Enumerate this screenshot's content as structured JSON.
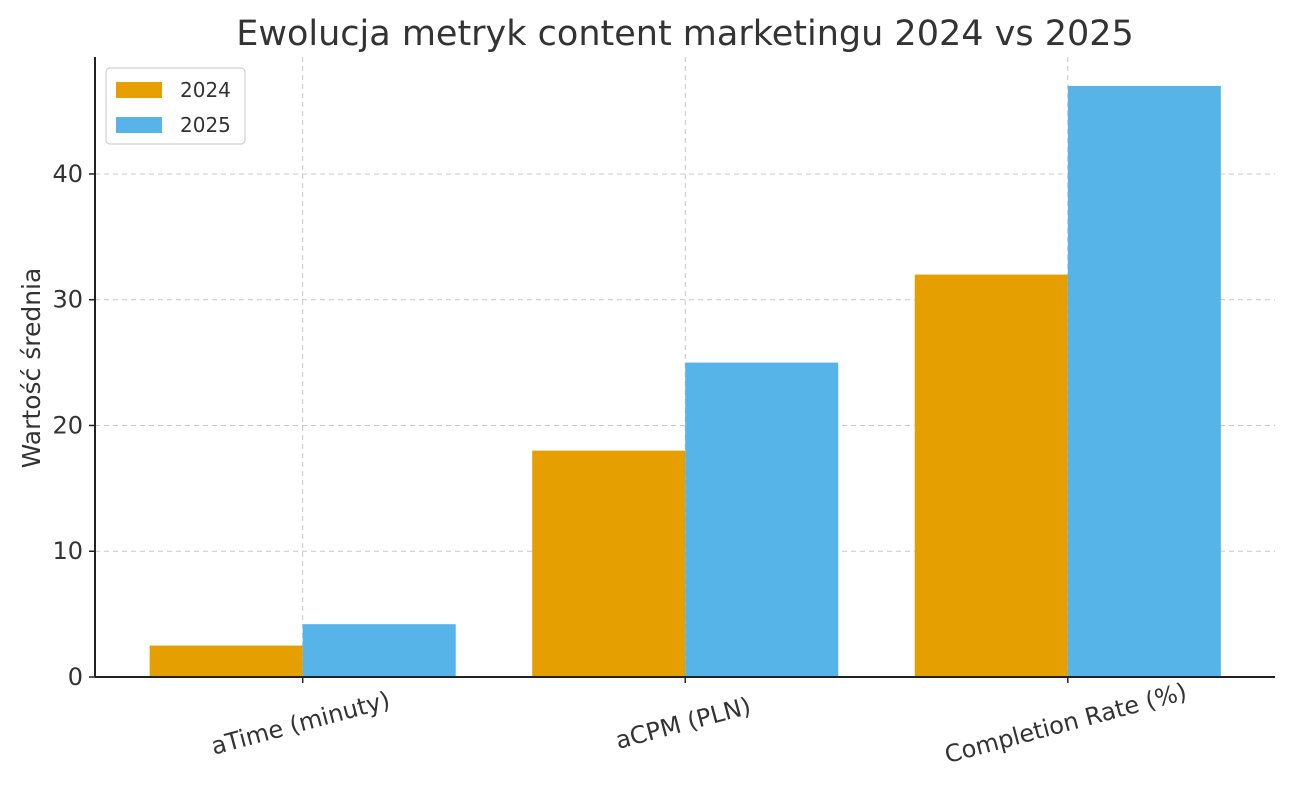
{
  "chart_data": {
    "type": "bar",
    "title": "Ewolucja metryk content marketingu 2024 vs 2025",
    "xlabel": "",
    "ylabel": "Wartość średnia",
    "categories": [
      "aTime (minuty)",
      "aCPM (PLN)",
      "Completion Rate (%)"
    ],
    "series": [
      {
        "name": "2024",
        "values": [
          2.5,
          18,
          32
        ],
        "color": "#E69F00"
      },
      {
        "name": "2025",
        "values": [
          4.2,
          25,
          47
        ],
        "color": "#56B4E9"
      }
    ],
    "ylim": [
      0,
      49.3
    ],
    "yticks": [
      0,
      10,
      20,
      30,
      40
    ],
    "grid": true,
    "legend_position": "top-left"
  }
}
